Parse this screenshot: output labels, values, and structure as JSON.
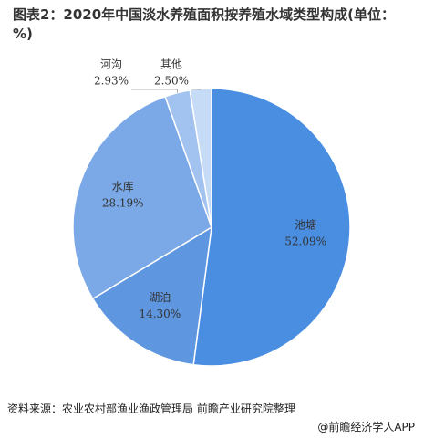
{
  "chart_data": {
    "type": "pie",
    "title": "图表2：2020年中国淡水养殖面积按养殖水域类型构成(单位：%)",
    "categories": [
      "池塘",
      "湖泊",
      "水库",
      "河沟",
      "其他"
    ],
    "values": [
      52.09,
      14.3,
      28.19,
      2.93,
      2.5
    ],
    "value_labels": [
      "52.09%",
      "14.30%",
      "28.19%",
      "2.93%",
      "2.50%"
    ],
    "colors": [
      "#4a8ee2",
      "#5e96df",
      "#7ba9e7",
      "#a2c2ef",
      "#c6dbf6"
    ]
  },
  "source": "资料来源：农业农村部渔业渔政管理局 前瞻产业研究院整理",
  "footer": "@前瞻经济学人APP"
}
